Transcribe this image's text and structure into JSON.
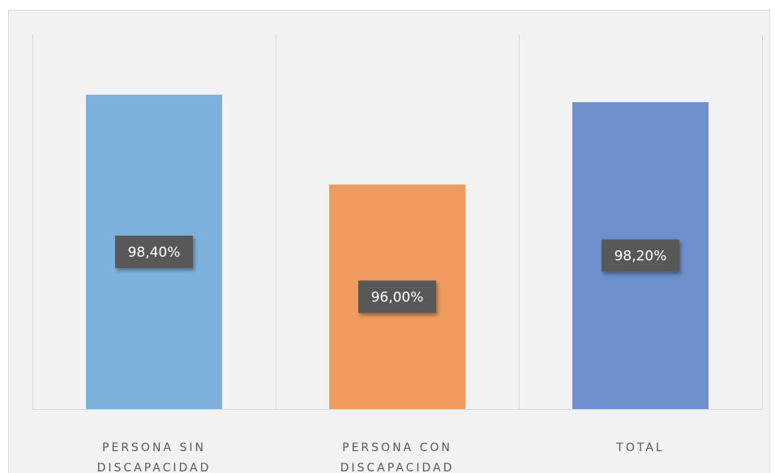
{
  "chart_data": {
    "type": "bar",
    "categories": [
      "PERSONA SIN DISCAPACIDAD",
      "PERSONA CON DISCAPACIDAD",
      "TOTAL"
    ],
    "values": [
      98.4,
      96.0,
      98.2
    ],
    "value_labels": [
      "98,40%",
      "96,00%",
      "98,20%"
    ],
    "colors": [
      "#7eb0dc",
      "#ef9b5f",
      "#6d8fcc"
    ],
    "ylim": [
      90,
      100
    ]
  }
}
